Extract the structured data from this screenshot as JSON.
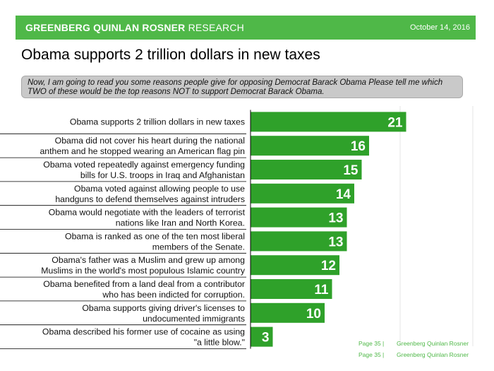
{
  "header": {
    "brand_bold": "GREENBERG QUINLAN ROSNER",
    "brand_light": " RESEARCH",
    "date": "October 14, 2016"
  },
  "title": "Obama supports 2 trillion dollars in new taxes",
  "question": "Now, I am going to read you some reasons people give for opposing Democrat Barack Obama  Please tell me which TWO of these would be the top reasons NOT to support Democrat Barack Obama.",
  "colors": {
    "accent": "#4fb848",
    "bar": "#2fa12a",
    "question_bg": "#c9c9c9"
  },
  "chart_data": {
    "type": "bar",
    "orientation": "horizontal",
    "categories": [
      [
        "Obama supports 2 trillion dollars in new taxes"
      ],
      [
        "Obama did not cover his heart during the national",
        "anthem and he stopped wearing an American flag pin"
      ],
      [
        "Obama voted repeatedly against emergency funding",
        "bills for U.S. troops in Iraq and Afghanistan"
      ],
      [
        "Obama voted against allowing people to use",
        "handguns to defend themselves against intruders"
      ],
      [
        "Obama would negotiate with the leaders of terrorist",
        "nations like Iran and North Korea."
      ],
      [
        "Obama is ranked as one of the ten most liberal",
        "members of the Senate."
      ],
      [
        "Obama's father was a Muslim and grew up among",
        "Muslims in the world's most populous Islamic country"
      ],
      [
        "Obama benefited from a land deal from a contributor",
        "who has been indicted for corruption."
      ],
      [
        "Obama supports giving driver's licenses to",
        "undocumented immigrants"
      ],
      [
        "Obama described his former use of cocaine as using",
        "\"a little blow.\""
      ]
    ],
    "values": [
      21,
      16,
      15,
      14,
      13,
      13,
      12,
      11,
      10,
      3
    ],
    "data_labels": true
  },
  "footer": {
    "page": "Page 35 |",
    "org": "Greenberg Quinlan Rosner"
  }
}
